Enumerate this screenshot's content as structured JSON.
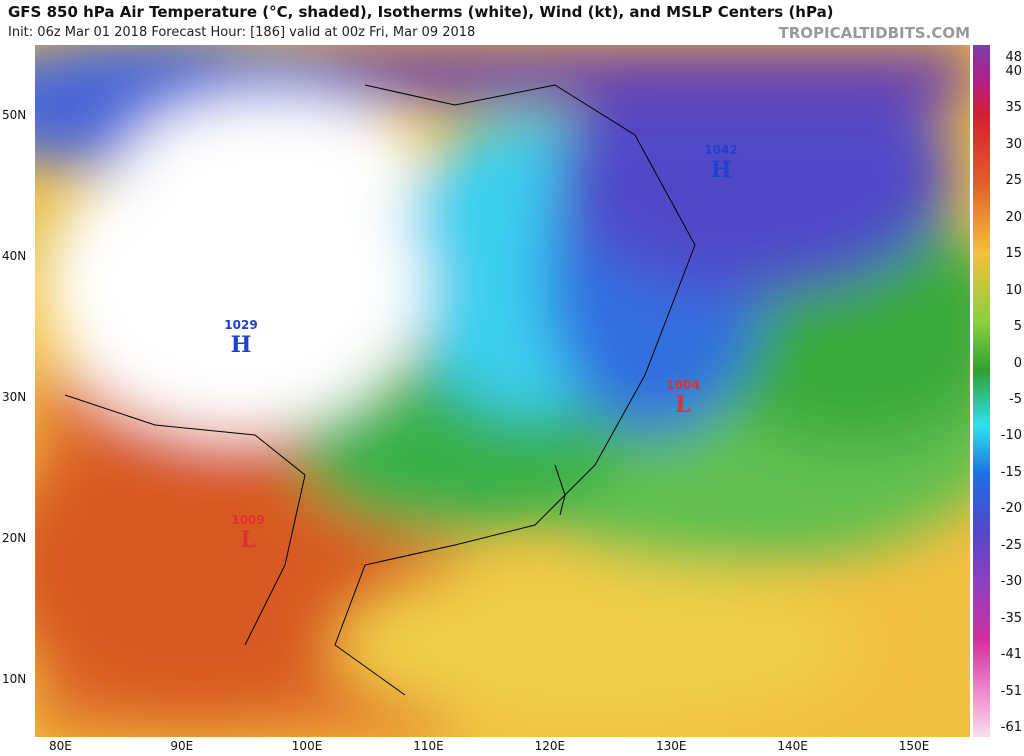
{
  "header": {
    "title": "GFS 850 hPa Air Temperature (°C, shaded), Isotherms (white), Wind (kt), and MSLP Centers (hPa)",
    "subtitle": "Init: 06z Mar 01 2018   Forecast Hour: [186]   valid at 00z Fri, Mar 09 2018",
    "site": "TROPICALTIDBITS.COM"
  },
  "map": {
    "lat_labels": [
      "50N",
      "40N",
      "30N",
      "20N",
      "10N"
    ],
    "lon_labels": [
      "80E",
      "90E",
      "100E",
      "110E",
      "120E",
      "130E",
      "140E",
      "150E"
    ],
    "pressure_centers": [
      {
        "value": "1042",
        "symbol": "H"
      },
      {
        "value": "1029",
        "symbol": "H"
      },
      {
        "value": "1004",
        "symbol": "L"
      },
      {
        "value": "1009",
        "symbol": "L"
      }
    ]
  },
  "colorbar": {
    "labels": [
      "48",
      "40",
      "35",
      "30",
      "25",
      "20",
      "15",
      "10",
      "5",
      "0",
      "-5",
      "-10",
      "-15",
      "-20",
      "-25",
      "-30",
      "-35",
      "-41",
      "-51",
      "-61"
    ]
  }
}
